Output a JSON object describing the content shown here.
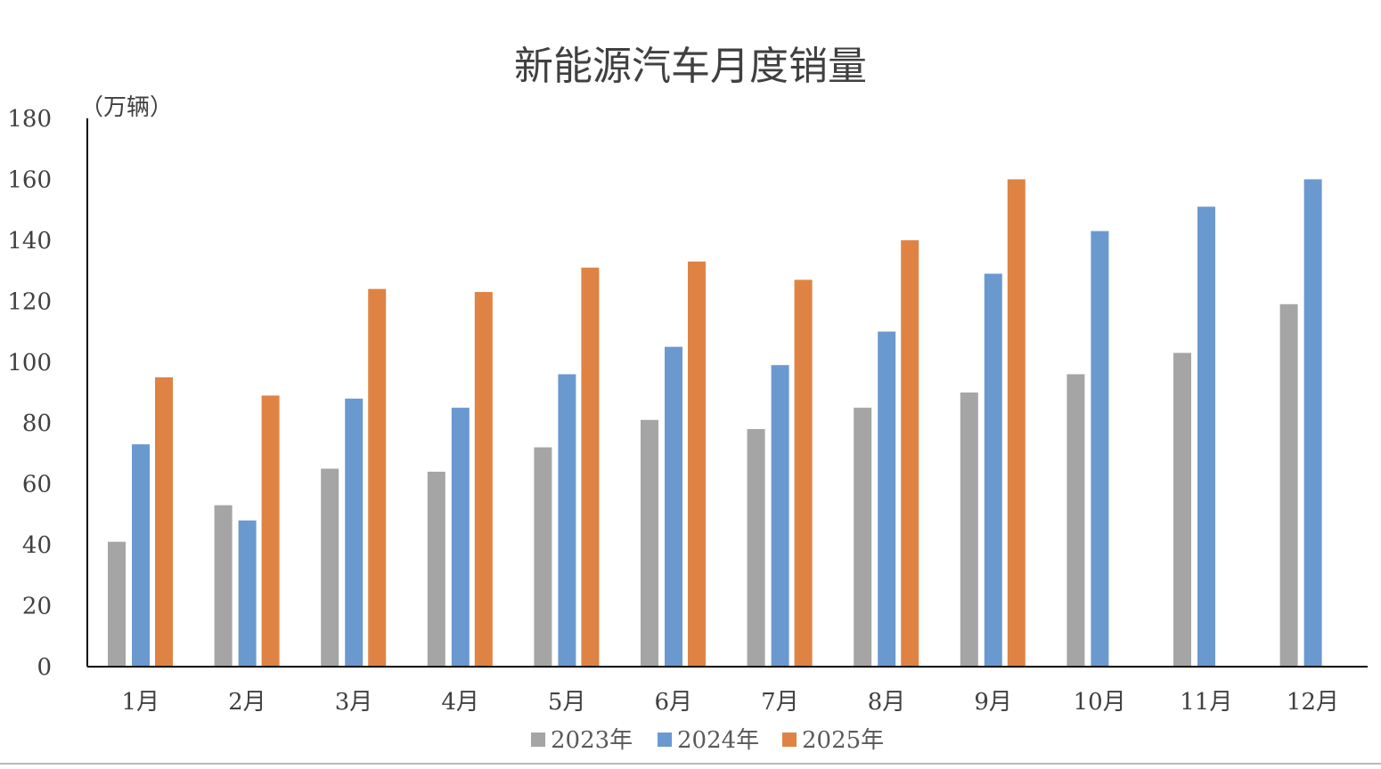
{
  "chart_data": {
    "type": "bar",
    "title": "新能源汽车月度销量",
    "ylabel": "（万辆）",
    "xlabel": "",
    "ylim": [
      0,
      180
    ],
    "yticks": [
      0,
      20,
      40,
      60,
      80,
      100,
      120,
      140,
      160,
      180
    ],
    "grid": false,
    "legend_position": "bottom",
    "categories": [
      "1月",
      "2月",
      "3月",
      "4月",
      "5月",
      "6月",
      "7月",
      "8月",
      "9月",
      "10月",
      "11月",
      "12月"
    ],
    "series": [
      {
        "name": "2023年",
        "color": "#a5a5a5",
        "values": [
          41,
          53,
          65,
          64,
          72,
          81,
          78,
          85,
          90,
          96,
          103,
          119
        ]
      },
      {
        "name": "2024年",
        "color": "#6a99d0",
        "values": [
          73,
          48,
          88,
          85,
          96,
          105,
          99,
          110,
          129,
          143,
          151,
          160
        ]
      },
      {
        "name": "2025年",
        "color": "#df8344",
        "values": [
          95,
          89,
          124,
          123,
          131,
          133,
          127,
          140,
          160,
          null,
          null,
          null
        ]
      }
    ]
  }
}
